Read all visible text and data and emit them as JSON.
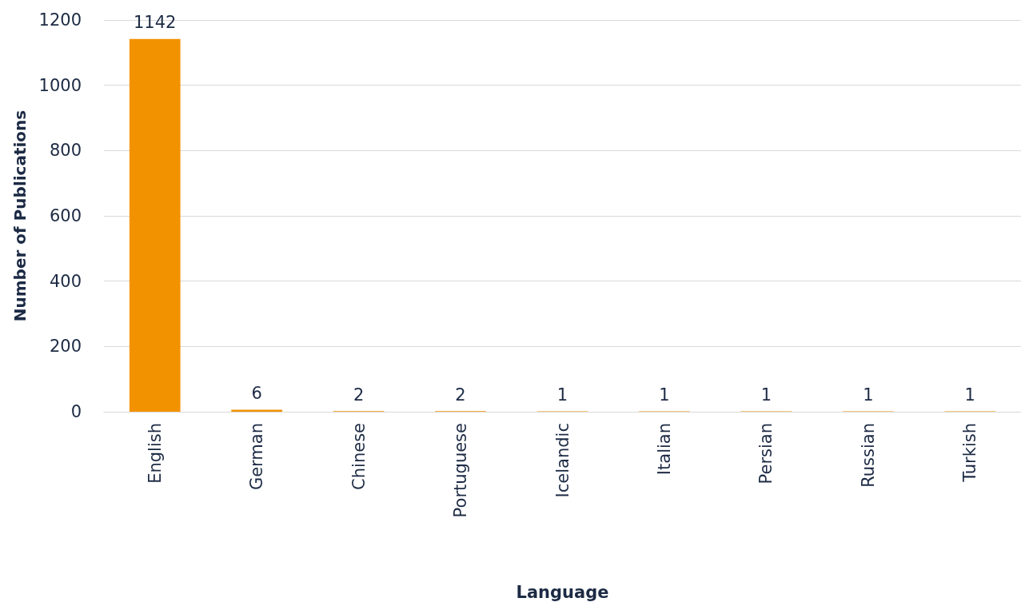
{
  "chart_data": {
    "type": "bar",
    "xlabel": "Language",
    "ylabel": "Number of Publications",
    "categories": [
      "English",
      "German",
      "Chinese",
      "Portuguese",
      "Icelandic",
      "Italian",
      "Persian",
      "Russian",
      "Turkish"
    ],
    "values": [
      1142,
      6,
      2,
      2,
      1,
      1,
      1,
      1,
      1
    ],
    "color": "#f39200",
    "ylim": [
      0,
      1200
    ],
    "yticks": [
      0,
      200,
      400,
      600,
      800,
      1000,
      1200
    ],
    "grid": "y",
    "data_labels": true
  }
}
